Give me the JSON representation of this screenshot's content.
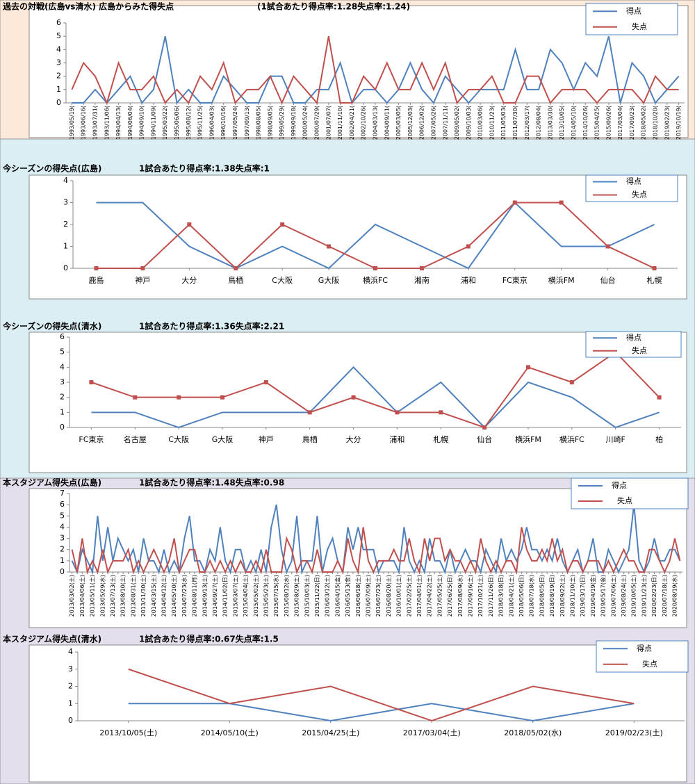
{
  "chart_data": [
    {
      "type": "line",
      "title": "過去の対戦(広島vs清水) 広島からみた得失点",
      "subtitle": "(1試合あたり得点率:1.28失点率:1.24)",
      "categories": [
        "1993/05/19(",
        "1993/06/16(",
        "1993/07/31(",
        "1993/11/06(",
        "1994/04/13(",
        "1994/06/04(",
        "1994/09/10(",
        "1994/11/09(",
        "1995/03/22(",
        "1995/06/06(",
        "1995/08/12(",
        "1995/11/25(",
        "1996/04/03(",
        "1996/10/16(",
        "1997/05/24(",
        "1997/09/13(",
        "1998/08/05(",
        "1998/09/05(",
        "1999/05/29(",
        "1999/09/18(",
        "2000/05/24(",
        "2000/07/29(",
        "2001/07/07(",
        "2001/11/10(",
        "2002/04/21(",
        "2002/10/26(",
        "2004/03/13(",
        "2004/09/11(",
        "2005/03/05(",
        "2005/12/03(",
        "2006/12/02(",
        "2007/05/26(",
        "2007/11/11(",
        "2009/05/02(",
        "2009/10/03(",
        "2010/03/06(",
        "2010/11/23(",
        "2011/05/03(",
        "2011/07/30(",
        "2012/03/17(",
        "2012/08/04(",
        "2013/03/30(",
        "2013/10/05(",
        "2014/05/10(",
        "2014/10/26(",
        "2015/04/25(",
        "2015/09/26(",
        "2017/03/04(",
        "2017/09/23(",
        "2018/05/02(",
        "2018/10/20(",
        "2019/02/23(",
        "2019/10/19("
      ],
      "series": [
        {
          "name": "得点",
          "color": "#4f81bd",
          "values": [
            0,
            0,
            1,
            0,
            1,
            2,
            0,
            1,
            5,
            0,
            1,
            0,
            0,
            2,
            1,
            0,
            0,
            2,
            2,
            0,
            0,
            1,
            1,
            3,
            0,
            1,
            1,
            0,
            1,
            3,
            1,
            0,
            2,
            1,
            0,
            1,
            1,
            1,
            4,
            1,
            1,
            4,
            3,
            1,
            3,
            2,
            5,
            0,
            3,
            2,
            0,
            1,
            2
          ]
        },
        {
          "name": "失点",
          "color": "#c0504d",
          "values": [
            1,
            3,
            2,
            0,
            3,
            1,
            1,
            2,
            0,
            1,
            0,
            2,
            1,
            3,
            0,
            1,
            1,
            2,
            0,
            2,
            1,
            0,
            5,
            0,
            0,
            2,
            1,
            3,
            1,
            1,
            3,
            1,
            3,
            0,
            1,
            1,
            2,
            0,
            0,
            2,
            2,
            0,
            1,
            1,
            1,
            0,
            1,
            1,
            1,
            0,
            2,
            1,
            1
          ]
        }
      ],
      "ylim": [
        0,
        6
      ],
      "yticks": [
        0,
        1,
        2,
        3,
        4,
        5,
        6
      ],
      "x_label_rotation": 90
    },
    {
      "type": "line",
      "title": "今シーズンの得失点(広島)",
      "subtitle": "1試合あたり得点率:1.38失点率:1",
      "categories": [
        "鹿島",
        "神戸",
        "大分",
        "鳥栖",
        "C大阪",
        "G大阪",
        "横浜FC",
        "湘南",
        "浦和",
        "FC東京",
        "横浜FM",
        "仙台",
        "札幌"
      ],
      "series": [
        {
          "name": "得点",
          "color": "#4f81bd",
          "marker": "square",
          "values": [
            3,
            3,
            1,
            0,
            1,
            0,
            2,
            1,
            0,
            3,
            1,
            1,
            2
          ]
        },
        {
          "name": "失点",
          "color": "#c0504d",
          "marker": "square",
          "values": [
            0,
            0,
            2,
            0,
            2,
            1,
            0,
            0,
            1,
            3,
            3,
            1,
            0
          ]
        }
      ],
      "ylim": [
        0,
        4
      ],
      "yticks": [
        0,
        1,
        2,
        3,
        4
      ],
      "x_label_rotation": 0
    },
    {
      "type": "line",
      "title": "今シーズンの得失点(清水)",
      "subtitle": "1試合あたり得点率:1.36失点率:2.21",
      "categories": [
        "FC東京",
        "名古屋",
        "C大阪",
        "G大阪",
        "神戸",
        "鳥栖",
        "大分",
        "浦和",
        "札幌",
        "仙台",
        "横浜FM",
        "横浜FC",
        "川崎F",
        "柏"
      ],
      "series": [
        {
          "name": "得点",
          "color": "#4f81bd",
          "marker": "square",
          "values": [
            1,
            1,
            0,
            1,
            1,
            1,
            4,
            1,
            3,
            0,
            3,
            2,
            0,
            1
          ]
        },
        {
          "name": "失点",
          "color": "#c0504d",
          "marker": "square",
          "values": [
            3,
            2,
            2,
            2,
            3,
            1,
            2,
            1,
            1,
            0,
            4,
            3,
            5,
            2
          ]
        }
      ],
      "ylim": [
        0,
        6
      ],
      "yticks": [
        0,
        1,
        2,
        3,
        4,
        5,
        6
      ],
      "x_label_rotation": 0
    },
    {
      "type": "line",
      "title": "本スタジアム得失点(広島)",
      "subtitle": "1試合あたり得点率:1.48失点率:0.98",
      "categories": [
        "2013/03/02(土)",
        null,
        "2013/04/06(土)",
        null,
        "2013/05/11(土)",
        null,
        "2013/05/29(水)",
        null,
        "2013/07/13(土)",
        null,
        "2013/08/10(土)",
        null,
        "2013/08/31(土)",
        null,
        "2013/11/30(土)",
        null,
        "2014/03/15(土)",
        null,
        "2014/04/12(土)",
        null,
        "2014/05/10(土)",
        null,
        "2014/07/23(水)",
        null,
        "2014/08/11(月)",
        null,
        "2014/09/13(土)",
        null,
        "2014/09/27(土)",
        null,
        "2014/11/02(日)",
        null,
        "2015/03/07(土)",
        null,
        "2015/04/04(土)",
        null,
        "2015/05/02(土)",
        null,
        "2015/05/23(土)",
        null,
        "2015/07/15(水)",
        null,
        "2015/08/12(水)",
        null,
        "2015/08/29(土)",
        null,
        "2015/10/03(土)",
        null,
        "2015/11/22(日)",
        null,
        "2016/03/12(土)",
        null,
        "2016/04/15(金)",
        null,
        "2016/05/13(金)",
        null,
        "2016/06/18(土)",
        null,
        "2016/07/09(土)",
        null,
        "2016/07/23(土)",
        null,
        "2016/08/20(土)",
        null,
        "2016/10/01(土)",
        null,
        "2017/02/25(土)",
        null,
        "2017/04/01(土)",
        null,
        "2017/04/22(土)",
        null,
        "2017/05/25(土)",
        null,
        "2017/06/25(日)",
        null,
        "2017/08/09(水)",
        null,
        "2017/09/16(土)",
        null,
        "2017/10/21(土)",
        null,
        "2017/11/26(日)",
        null,
        "2018/03/18(日)",
        null,
        "2018/04/21(土)",
        null,
        "2018/05/06(日)",
        null,
        "2018/07/18(水)",
        null,
        "2018/08/05(日)",
        null,
        "2018/08/19(日)",
        null,
        "2018/09/22(土)",
        null,
        "2018/11/10(土)",
        null,
        "2019/03/17(日)",
        null,
        "2019/04/19(金)",
        null,
        "2019/05/17(金)",
        null,
        "2019/07/06(土)",
        null,
        "2019/08/24(土)",
        null,
        "2019/10/05(土)",
        null,
        "2019/11/23(土)",
        null,
        "2020/02/23(日)",
        null,
        "2020/07/18(土)",
        null,
        "2020/08/19(水)",
        null
      ],
      "series": [
        {
          "name": "得点",
          "color": "#4f81bd",
          "values": [
            1,
            0,
            2,
            1,
            0,
            5,
            1,
            4,
            1,
            3,
            2,
            1,
            2,
            0,
            3,
            1,
            1,
            0,
            2,
            0,
            1,
            0,
            3,
            5,
            1,
            1,
            0,
            2,
            1,
            4,
            1,
            0,
            2,
            2,
            0,
            1,
            0,
            2,
            0,
            4,
            6,
            2,
            0,
            1,
            5,
            0,
            1,
            1,
            5,
            0,
            2,
            3,
            1,
            0,
            4,
            2,
            4,
            2,
            2,
            2,
            0,
            1,
            1,
            1,
            0,
            4,
            1,
            0,
            1,
            0,
            3,
            1,
            1,
            0,
            2,
            0,
            1,
            2,
            1,
            1,
            0,
            2,
            1,
            0,
            3,
            1,
            2,
            1,
            2,
            4,
            2,
            2,
            1,
            2,
            1,
            3,
            1,
            0,
            1,
            2,
            0,
            1,
            3,
            0,
            0,
            2,
            1,
            0,
            1,
            2,
            6,
            1,
            0,
            1,
            3,
            1,
            1,
            2,
            2,
            1
          ]
        },
        {
          "name": "失点",
          "color": "#c0504d",
          "values": [
            2,
            0,
            3,
            0,
            1,
            0,
            2,
            0,
            1,
            1,
            1,
            2,
            0,
            1,
            0,
            1,
            2,
            1,
            0,
            1,
            3,
            0,
            1,
            2,
            2,
            0,
            0,
            1,
            0,
            1,
            0,
            1,
            0,
            1,
            0,
            0,
            1,
            0,
            2,
            0,
            0,
            0,
            3,
            2,
            0,
            1,
            1,
            0,
            2,
            0,
            0,
            0,
            1,
            0,
            3,
            1,
            0,
            4,
            1,
            0,
            1,
            1,
            1,
            2,
            1,
            1,
            3,
            1,
            0,
            3,
            1,
            3,
            3,
            1,
            2,
            1,
            1,
            0,
            1,
            0,
            3,
            1,
            0,
            1,
            0,
            1,
            1,
            0,
            4,
            2,
            1,
            1,
            2,
            1,
            3,
            1,
            2,
            0,
            1,
            1,
            0,
            1,
            1,
            1,
            0,
            1,
            0,
            1,
            2,
            1,
            1,
            0,
            0,
            2,
            2,
            1,
            0,
            1,
            3,
            1
          ]
        }
      ],
      "ylim": [
        0,
        7
      ],
      "yticks": [
        0,
        1,
        2,
        3,
        4,
        5,
        6,
        7
      ],
      "x_label_rotation": 90
    },
    {
      "type": "line",
      "title": "本スタジアム得失点(清水)",
      "subtitle": "1試合あたり得点率:0.67失点率:1.5",
      "categories": [
        "2013/10/05(土)",
        "2014/05/10(土)",
        "2015/04/25(土)",
        "2017/03/04(土)",
        "2018/05/02(水)",
        "2019/02/23(土)"
      ],
      "series": [
        {
          "name": "得点",
          "color": "#4f81bd",
          "values": [
            1,
            1,
            0,
            1,
            0,
            1
          ]
        },
        {
          "name": "失点",
          "color": "#c0504d",
          "values": [
            3,
            1,
            2,
            0,
            2,
            1
          ]
        }
      ],
      "ylim": [
        0,
        4
      ],
      "yticks": [
        0,
        1,
        2,
        3,
        4
      ],
      "x_label_rotation": 0
    }
  ]
}
